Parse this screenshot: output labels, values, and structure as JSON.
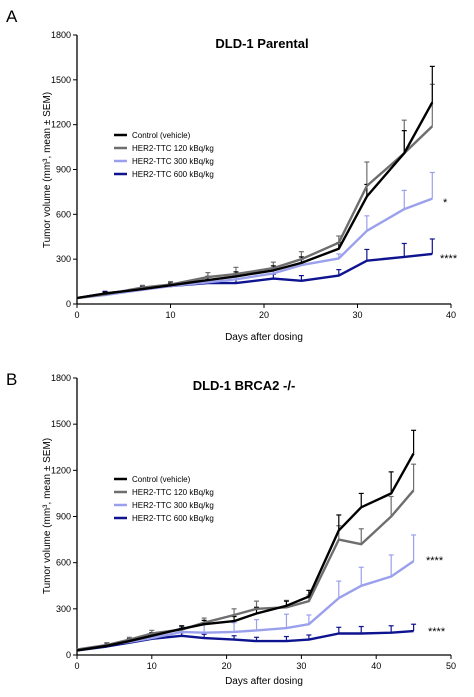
{
  "chart_data": [
    {
      "type": "line",
      "panel_label": "A",
      "title": "DLD-1 Parental",
      "xlabel": "Days after dosing",
      "ylabel": "Tumor volume (mm³, mean ± SEM)",
      "xlim": [
        0,
        40
      ],
      "ylim": [
        0,
        1800
      ],
      "xticks": [
        0,
        10,
        20,
        30,
        40
      ],
      "yticks": [
        0,
        300,
        600,
        900,
        1200,
        1500,
        1800
      ],
      "legend_position": "middle-left",
      "series": [
        {
          "name": "Control (vehicle)",
          "color": "#000000",
          "x": [
            0,
            3,
            7,
            10,
            14,
            17,
            21,
            24,
            28,
            31,
            35,
            38
          ],
          "y": [
            40,
            70,
            100,
            125,
            160,
            185,
            225,
            275,
            370,
            720,
            1010,
            1350
          ],
          "err": [
            0,
            10,
            15,
            15,
            25,
            30,
            30,
            40,
            40,
            80,
            150,
            240
          ]
        },
        {
          "name": "HER2-TTC 120 kBq/kg",
          "color": "#6e6e6e",
          "x": [
            0,
            3,
            7,
            10,
            14,
            17,
            21,
            24,
            28,
            31,
            35,
            38
          ],
          "y": [
            40,
            65,
            110,
            130,
            180,
            200,
            240,
            300,
            410,
            790,
            1010,
            1190
          ],
          "err": [
            0,
            10,
            15,
            20,
            30,
            45,
            40,
            50,
            45,
            160,
            220,
            280
          ]
        },
        {
          "name": "HER2-TTC 300 kBq/kg",
          "color": "#9aa0ec",
          "x": [
            0,
            3,
            7,
            10,
            14,
            17,
            21,
            24,
            28,
            31,
            35,
            38
          ],
          "y": [
            40,
            60,
            95,
            120,
            145,
            165,
            205,
            260,
            305,
            490,
            635,
            705
          ],
          "err": [
            0,
            10,
            20,
            15,
            20,
            20,
            35,
            35,
            30,
            100,
            125,
            175
          ]
        },
        {
          "name": "HER2-TTC 600 kBq/kg",
          "color": "#0e138f",
          "x": [
            0,
            3,
            7,
            10,
            14,
            17,
            21,
            24,
            28,
            31,
            35,
            38
          ],
          "y": [
            40,
            70,
            100,
            120,
            140,
            140,
            170,
            155,
            190,
            290,
            315,
            335
          ],
          "err": [
            0,
            15,
            20,
            15,
            25,
            25,
            30,
            35,
            40,
            75,
            90,
            100
          ]
        }
      ],
      "annotations": [
        {
          "text": "*",
          "series": "HER2-TTC 300 kBq/kg"
        },
        {
          "text": "****",
          "series": "HER2-TTC 600 kBq/kg"
        }
      ]
    },
    {
      "type": "line",
      "panel_label": "B",
      "title": "DLD-1 BRCA2 -/-",
      "xlabel": "Days after dosing",
      "ylabel": "Tumor volume (mm³, mean ± SEM)",
      "xlim": [
        0,
        50
      ],
      "ylim": [
        0,
        1800
      ],
      "xticks": [
        0,
        10,
        20,
        30,
        40,
        50
      ],
      "yticks": [
        0,
        300,
        600,
        900,
        1200,
        1500,
        1800
      ],
      "legend_position": "middle-left",
      "series": [
        {
          "name": "Control (vehicle)",
          "color": "#000000",
          "x": [
            0,
            4,
            7,
            10,
            14,
            17,
            21,
            24,
            28,
            31,
            35,
            38,
            42,
            45
          ],
          "y": [
            30,
            60,
            90,
            125,
            170,
            200,
            220,
            270,
            320,
            380,
            810,
            960,
            1050,
            1310
          ],
          "err": [
            0,
            10,
            15,
            20,
            20,
            25,
            30,
            40,
            30,
            40,
            100,
            90,
            140,
            150
          ]
        },
        {
          "name": "HER2-TTC 120 kBq/kg",
          "color": "#6e6e6e",
          "x": [
            0,
            4,
            7,
            10,
            14,
            17,
            21,
            24,
            28,
            31,
            35,
            38,
            42,
            45
          ],
          "y": [
            35,
            65,
            100,
            140,
            165,
            210,
            260,
            300,
            310,
            350,
            750,
            720,
            900,
            1070
          ],
          "err": [
            0,
            15,
            15,
            20,
            20,
            30,
            40,
            50,
            45,
            40,
            90,
            100,
            130,
            170
          ]
        },
        {
          "name": "HER2-TTC 300 kBq/kg",
          "color": "#9aa0ec",
          "x": [
            0,
            4,
            7,
            10,
            14,
            17,
            21,
            24,
            28,
            31,
            35,
            38,
            42,
            45
          ],
          "y": [
            35,
            65,
            85,
            110,
            150,
            145,
            150,
            160,
            175,
            200,
            370,
            450,
            510,
            610
          ],
          "err": [
            0,
            15,
            20,
            25,
            30,
            60,
            60,
            70,
            90,
            60,
            110,
            120,
            140,
            170
          ]
        },
        {
          "name": "HER2-TTC 600 kBq/kg",
          "color": "#0e138f",
          "x": [
            0,
            4,
            7,
            10,
            14,
            17,
            21,
            24,
            28,
            31,
            35,
            38,
            42,
            45
          ],
          "y": [
            30,
            55,
            80,
            105,
            125,
            110,
            100,
            90,
            90,
            100,
            140,
            140,
            145,
            155
          ],
          "err": [
            0,
            15,
            20,
            20,
            20,
            25,
            25,
            25,
            30,
            30,
            40,
            45,
            45,
            45
          ]
        }
      ],
      "annotations": [
        {
          "text": "****",
          "series": "HER2-TTC 300 kBq/kg"
        },
        {
          "text": "****",
          "series": "HER2-TTC 600 kBq/kg"
        }
      ]
    }
  ]
}
